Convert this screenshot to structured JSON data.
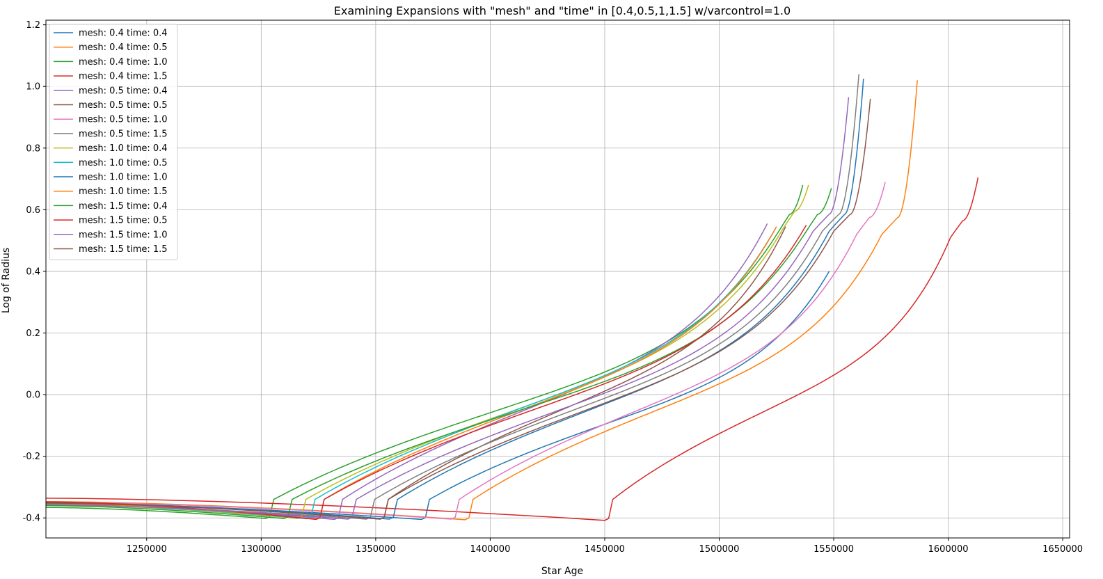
{
  "chart_data": {
    "type": "line",
    "title": "Examining Expansions with \"mesh\" and \"time\" in [0.4,0.5,1,1.5] w/varcontrol=1.0",
    "xlabel": "Star Age",
    "ylabel": "Log of Radius",
    "xlim": [
      1206000,
      1653000
    ],
    "ylim": [
      -0.465,
      1.215
    ],
    "xticks": [
      1250000,
      1300000,
      1350000,
      1400000,
      1450000,
      1500000,
      1550000,
      1600000,
      1650000
    ],
    "yticks": [
      -0.4,
      -0.2,
      0.0,
      0.2,
      0.4,
      0.6,
      0.8,
      1.0,
      1.2
    ],
    "xtick_labels": [
      "1250000",
      "1300000",
      "1350000",
      "1400000",
      "1450000",
      "1500000",
      "1550000",
      "1600000",
      "1650000"
    ],
    "ytick_labels": [
      "-0.4",
      "-0.2",
      "0.0",
      "0.2",
      "0.4",
      "0.6",
      "0.8",
      "1.0",
      "1.2"
    ],
    "grid": true,
    "legend_position": "top-left",
    "series": [
      {
        "name": "mesh: 0.4 time: 0.4",
        "color": "#1f77b4",
        "x0": 1206000,
        "y0": -0.352,
        "xmin": 1370000,
        "ymin": -0.405,
        "xtop": 1548000,
        "ytop": 0.4,
        "xknee": null,
        "yknee": null
      },
      {
        "name": "mesh: 0.4 time: 0.5",
        "color": "#ff7f0e",
        "x0": 1206000,
        "y0": -0.347,
        "xmin": 1389000,
        "ymin": -0.406,
        "xtop": 1586500,
        "ytop": 1.02,
        "xknee": 1571000,
        "yknee": 0.52
      },
      {
        "name": "mesh: 0.4 time: 1.0",
        "color": "#2ca02c",
        "x0": 1206000,
        "y0": -0.366,
        "xmin": 1302000,
        "ymin": -0.402,
        "xtop": 1536500,
        "ytop": 0.68,
        "xknee": 1526000,
        "yknee": 0.53
      },
      {
        "name": "mesh: 0.4 time: 1.5",
        "color": "#d62728",
        "x0": 1206000,
        "y0": -0.336,
        "xmin": 1450000,
        "ymin": -0.408,
        "xtop": 1613000,
        "ytop": 0.705,
        "xknee": 1601000,
        "yknee": 0.51
      },
      {
        "name": "mesh: 0.5 time: 0.4",
        "color": "#9467bd",
        "x0": 1206000,
        "y0": -0.354,
        "xmin": 1332000,
        "ymin": -0.405,
        "xtop": 1521000,
        "ytop": 0.555,
        "xknee": null,
        "yknee": null
      },
      {
        "name": "mesh: 0.5 time: 0.5",
        "color": "#8c564b",
        "x0": 1206000,
        "y0": -0.351,
        "xmin": 1352000,
        "ymin": -0.404,
        "xtop": 1529000,
        "ytop": 0.545,
        "xknee": null,
        "yknee": null
      },
      {
        "name": "mesh: 0.5 time: 1.0",
        "color": "#e377c2",
        "x0": 1206000,
        "y0": -0.349,
        "xmin": 1383000,
        "ymin": -0.404,
        "xtop": 1572500,
        "ytop": 0.69,
        "xknee": 1560000,
        "yknee": 0.52
      },
      {
        "name": "mesh: 0.5 time: 1.5",
        "color": "#7f7f7f",
        "x0": 1206000,
        "y0": -0.358,
        "xmin": 1346000,
        "ymin": -0.404,
        "xtop": 1561000,
        "ytop": 1.04,
        "xknee": 1545000,
        "yknee": 0.53
      },
      {
        "name": "mesh: 1.0 time: 0.4",
        "color": "#bcbd22",
        "x0": 1206000,
        "y0": -0.356,
        "xmin": 1316000,
        "ymin": -0.402,
        "xtop": 1539000,
        "ytop": 0.68,
        "xknee": 1528000,
        "yknee": 0.54
      },
      {
        "name": "mesh: 1.0 time: 0.5",
        "color": "#17becf",
        "x0": 1206000,
        "y0": -0.355,
        "xmin": 1320000,
        "ymin": -0.403,
        "xtop": 1525000,
        "ytop": 0.545,
        "xknee": null,
        "yknee": null
      },
      {
        "name": "mesh: 1.0 time: 1.0",
        "color": "#1f77b4",
        "x0": 1206000,
        "y0": -0.35,
        "xmin": 1356000,
        "ymin": -0.404,
        "xtop": 1563000,
        "ytop": 1.025,
        "xknee": 1548000,
        "yknee": 0.53
      },
      {
        "name": "mesh: 1.0 time: 1.5",
        "color": "#ff7f0e",
        "x0": 1206000,
        "y0": -0.353,
        "xmin": 1324000,
        "ymin": -0.404,
        "xtop": 1525000,
        "ytop": 0.545,
        "xknee": null,
        "yknee": null
      },
      {
        "name": "mesh: 1.5 time: 0.4",
        "color": "#2ca02c",
        "x0": 1206000,
        "y0": -0.36,
        "xmin": 1310000,
        "ymin": -0.402,
        "xtop": 1549000,
        "ytop": 0.67,
        "xknee": 1538000,
        "yknee": 0.53
      },
      {
        "name": "mesh: 1.5 time: 0.5",
        "color": "#d62728",
        "x0": 1206000,
        "y0": -0.348,
        "xmin": 1324000,
        "ymin": -0.405,
        "xtop": 1538000,
        "ytop": 0.55,
        "xknee": null,
        "yknee": null
      },
      {
        "name": "mesh: 1.5 time: 1.0",
        "color": "#9467bd",
        "x0": 1206000,
        "y0": -0.357,
        "xmin": 1338000,
        "ymin": -0.404,
        "xtop": 1556500,
        "ytop": 0.965,
        "xknee": 1541000,
        "yknee": 0.53
      },
      {
        "name": "mesh: 1.5 time: 1.5",
        "color": "#8c564b",
        "x0": 1206000,
        "y0": -0.352,
        "xmin": 1352000,
        "ymin": -0.404,
        "xtop": 1566000,
        "ytop": 0.96,
        "xknee": 1550000,
        "yknee": 0.53
      }
    ]
  }
}
